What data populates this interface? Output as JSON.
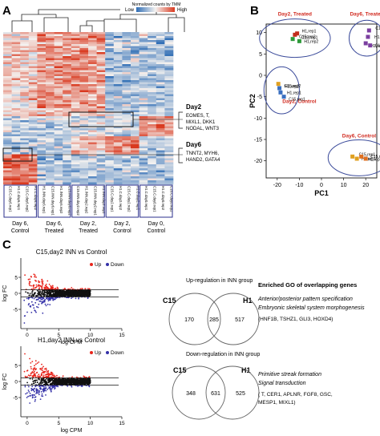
{
  "panels": {
    "a": "A",
    "b": "B",
    "c": "C"
  },
  "heatmap": {
    "colorbar_title": "Normalized counts by TMM",
    "colorbar_low": "Low",
    "colorbar_high": "High",
    "samples": [
      "C15.C.day6.rep1",
      "H1.C.day6.rep1",
      "C15.C.day6.rep2",
      "H1.C.day6.rep2",
      "H1.INN.day6.rep1",
      "C15.INN.day6.rep1",
      "H1.INN.day6.rep2",
      "C15.INN.day6.rep2",
      "C15.INN.day2.rep2",
      "H1.INN.day2.rep2",
      "C15.INN.day2.rep1",
      "H1.INN.day2.rep1",
      "C15.C.day2.rep1",
      "H1.C.day2.rep2",
      "C15.C.day2.rep2",
      "H1.C.day2.rep1",
      "H1.C.day0.rep1",
      "C15.C.day0.rep1",
      "H1.C.day0.rep2",
      "C15.C.day0.rep2"
    ],
    "group_labels": [
      [
        "Day 6,",
        "Control"
      ],
      [
        "Day 6,",
        "Treated"
      ],
      [
        "Day 2,",
        "Treated"
      ],
      [
        "Day 2,",
        "Control"
      ],
      [
        "Day 0,",
        "Control"
      ]
    ],
    "day2_title": "Day2",
    "day2_genes": [
      "EOMES, T,",
      "MIXL1, DKK1",
      "NODAL, WNT3"
    ],
    "day6_title": "Day6",
    "day6_genes": [
      "TNNT2, MYH6,",
      "HAND2, GATA4"
    ]
  },
  "pca": {
    "xlabel": "PC1",
    "ylabel": "PC2",
    "xticks": [
      "-20",
      "-10",
      "0",
      "10",
      "20"
    ],
    "yticks": [
      "10",
      "5",
      "0",
      "-5",
      "-10",
      "-15",
      "-20"
    ],
    "group_labels": [
      "Day2, Treated",
      "Day6, Treated",
      "Day2, Control",
      "Day6, Control"
    ],
    "points": [
      {
        "label": "C15,rep2",
        "x": -13,
        "y": 8.5,
        "color": "#2e9a3a"
      },
      {
        "label": "H1,rep2",
        "x": -10,
        "y": 8,
        "color": "#2e9a3a"
      },
      {
        "label": "C15,rep1",
        "x": -12,
        "y": 9.5,
        "color": "#c22c1c"
      },
      {
        "label": "H1,rep1",
        "x": -11,
        "y": 9.8,
        "color": "#c22c1c"
      },
      {
        "label": "H1,rep2",
        "x": 21,
        "y": 9,
        "color": "#7b3fa0"
      },
      {
        "label": "H1,rep1",
        "x": 20,
        "y": 7.5,
        "color": "#7b3fa0"
      },
      {
        "label": "C15,rep1",
        "x": 21.5,
        "y": 10.5,
        "color": "#7b3fa0"
      },
      {
        "label": "C15,rep2",
        "x": 22,
        "y": 7,
        "color": "#7b3fa0"
      },
      {
        "label": "H1,rep2",
        "x": -19.5,
        "y": -2,
        "color": "#e0a020"
      },
      {
        "label": "C15,rep2",
        "x": -19,
        "y": -3,
        "color": "#3a6fc0"
      },
      {
        "label": "H1,rep1",
        "x": -18.5,
        "y": -4,
        "color": "#3a6fc0"
      },
      {
        "label": "C15,rep1",
        "x": -17,
        "y": -5,
        "color": "#3a6fc0"
      },
      {
        "label": "C15,rep1",
        "x": 14,
        "y": -19,
        "color": "#e0a020"
      },
      {
        "label": "H1,rep1",
        "x": 16,
        "y": -19.5,
        "color": "#e0a020"
      },
      {
        "label": "H1,rep2",
        "x": 18,
        "y": -19,
        "color": "#e07020"
      },
      {
        "label": "C15,rep2",
        "x": 20,
        "y": -19.5,
        "color": "#e07020"
      }
    ]
  },
  "ma1": {
    "title": "C15,day2 INN vs Control",
    "legend_up": "Up",
    "legend_down": "Down",
    "ylabel": "log FC",
    "xlabel": "log CPM",
    "xticks": [
      "0",
      "5",
      "10",
      "15"
    ],
    "yticks": [
      "5",
      "0",
      "-5"
    ]
  },
  "ma2": {
    "title": "H1,day2 INN vs Control",
    "legend_up": "Up",
    "legend_down": "Down",
    "ylabel": "log FC",
    "xlabel": "log CPM",
    "xticks": [
      "0",
      "5",
      "10",
      "15"
    ],
    "yticks": [
      "5",
      "0",
      "-5"
    ]
  },
  "venn_up": {
    "title": "Up-regulation in INN group",
    "left_label": "C15",
    "right_label": "H1",
    "left": "170",
    "overlap": "285",
    "right": "517"
  },
  "venn_down": {
    "title": "Down-regulation in INN group",
    "left_label": "C15",
    "right_label": "H1",
    "left": "348",
    "overlap": "631",
    "right": "525"
  },
  "go": {
    "title": "Enriched GO of overlapping genes",
    "up_terms": [
      "Anterior/posterior pattern specification",
      "Embryonic skeletal system morphogenesis"
    ],
    "up_genes": "(HNF1B, TSHZ1, GLI3, HOXD4)",
    "down_terms": [
      "Primitive streak formation",
      "Signal transduction"
    ],
    "down_genes": [
      "( T, CER1, APLNR, FGF8, GSC,",
      "MESP1, MIXL1)"
    ]
  },
  "colors": {
    "red": "#e8251c",
    "blue": "#3431a8",
    "black": "#111111",
    "frame": "#2b2f8c",
    "title_red": "#d12a1f"
  }
}
